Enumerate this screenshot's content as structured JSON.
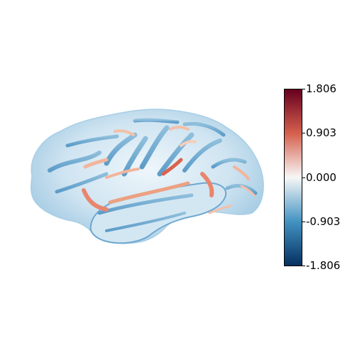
{
  "figure": {
    "view": "lateral surface, left hemisphere",
    "background_color": "#ffffff"
  },
  "colorbar": {
    "colormap": "RdBu_r",
    "min": -1.806,
    "max": 1.806,
    "tick_labels": [
      "1.806",
      "0.903",
      "0.000",
      "-0.903",
      "-1.806"
    ],
    "colors": {
      "top": "#67001f",
      "upper_mid": "#d6604d",
      "center": "#f7f7f7",
      "lower_mid": "#4393c3",
      "bottom": "#053061"
    }
  }
}
